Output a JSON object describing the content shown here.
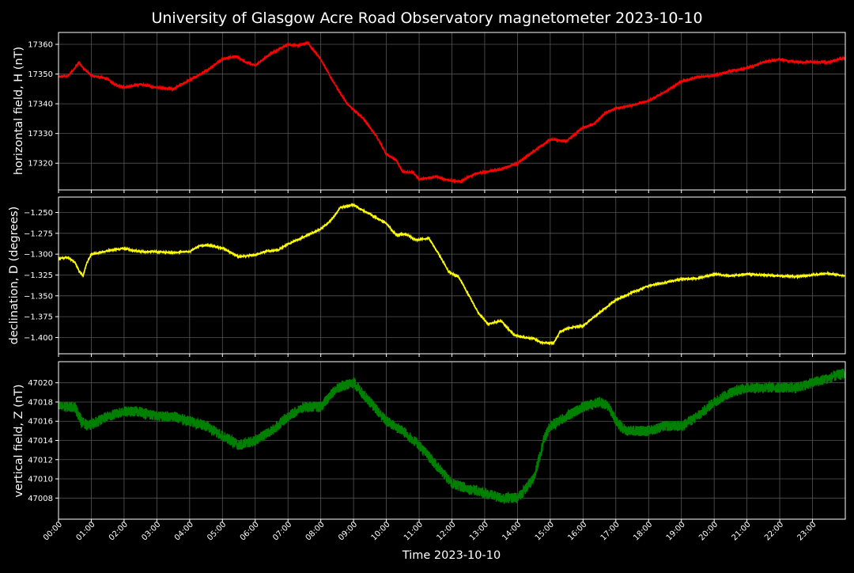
{
  "chart_data": [
    {
      "type": "line",
      "title": "University of Glasgow Acre Road Observatory magnetometer 2023-10-10",
      "ylabel": "horizontal field, H (nT)",
      "ylim": [
        17311,
        17364
      ],
      "yticks": [
        17320,
        17330,
        17340,
        17350,
        17360
      ],
      "yticklabels": [
        "17320",
        "17330",
        "17340",
        "17350",
        "17360"
      ],
      "grid": true,
      "series": [
        {
          "color": "#ff0000",
          "noise": 0.35,
          "points": [
            [
              0,
              17349
            ],
            [
              0.3,
              17349.5
            ],
            [
              0.5,
              17352
            ],
            [
              0.62,
              17354
            ],
            [
              0.75,
              17352
            ],
            [
              1,
              17349.5
            ],
            [
              1.5,
              17348.5
            ],
            [
              1.7,
              17346.5
            ],
            [
              2,
              17345.5
            ],
            [
              2.5,
              17346.5
            ],
            [
              3,
              17345.5
            ],
            [
              3.5,
              17345
            ],
            [
              4,
              17348
            ],
            [
              4.5,
              17351
            ],
            [
              5,
              17355
            ],
            [
              5.4,
              17356
            ],
            [
              5.7,
              17354
            ],
            [
              6,
              17353
            ],
            [
              6.5,
              17357
            ],
            [
              7,
              17360
            ],
            [
              7.3,
              17359.5
            ],
            [
              7.6,
              17360.5
            ],
            [
              8,
              17355
            ],
            [
              8.4,
              17347
            ],
            [
              8.8,
              17340
            ],
            [
              9.3,
              17335
            ],
            [
              9.7,
              17329
            ],
            [
              10,
              17323
            ],
            [
              10.3,
              17321
            ],
            [
              10.5,
              17317
            ],
            [
              10.8,
              17317
            ],
            [
              11,
              17314.5
            ],
            [
              11.5,
              17315.5
            ],
            [
              12,
              17314
            ],
            [
              12.3,
              17314
            ],
            [
              12.7,
              17316.5
            ],
            [
              13,
              17317
            ],
            [
              13.5,
              17318
            ],
            [
              14,
              17320
            ],
            [
              14.5,
              17324
            ],
            [
              15,
              17328
            ],
            [
              15.5,
              17327.5
            ],
            [
              16,
              17332
            ],
            [
              16.3,
              17333
            ],
            [
              16.7,
              17337
            ],
            [
              17,
              17338.5
            ],
            [
              17.5,
              17339.5
            ],
            [
              18,
              17341
            ],
            [
              18.5,
              17344
            ],
            [
              19,
              17347.5
            ],
            [
              19.5,
              17349
            ],
            [
              20,
              17349.5
            ],
            [
              20.5,
              17351
            ],
            [
              21,
              17352
            ],
            [
              21.5,
              17354
            ],
            [
              22,
              17355
            ],
            [
              22.5,
              17354
            ],
            [
              23,
              17354
            ],
            [
              23.5,
              17354
            ],
            [
              23.98,
              17355.5
            ]
          ]
        }
      ]
    },
    {
      "type": "line",
      "ylabel": "declination, D (degrees)",
      "ylim": [
        -1.4195,
        -1.2315
      ],
      "yticks": [
        -1.4,
        -1.375,
        -1.35,
        -1.325,
        -1.3,
        -1.275,
        -1.25
      ],
      "yticklabels": [
        "−1.400",
        "−1.375",
        "−1.350",
        "−1.325",
        "−1.300",
        "−1.275",
        "−1.250"
      ],
      "grid": true,
      "series": [
        {
          "color": "#ffff00",
          "noise": 0.0009,
          "points": [
            [
              0,
              -1.305
            ],
            [
              0.3,
              -1.304
            ],
            [
              0.5,
              -1.31
            ],
            [
              0.65,
              -1.322
            ],
            [
              0.75,
              -1.326
            ],
            [
              0.85,
              -1.312
            ],
            [
              1,
              -1.3
            ],
            [
              1.5,
              -1.296
            ],
            [
              2,
              -1.293
            ],
            [
              2.5,
              -1.297
            ],
            [
              3,
              -1.297
            ],
            [
              3.5,
              -1.298
            ],
            [
              4,
              -1.297
            ],
            [
              4.3,
              -1.29
            ],
            [
              4.6,
              -1.289
            ],
            [
              5,
              -1.293
            ],
            [
              5.5,
              -1.303
            ],
            [
              6,
              -1.301
            ],
            [
              6.3,
              -1.297
            ],
            [
              6.7,
              -1.295
            ],
            [
              7,
              -1.288
            ],
            [
              7.5,
              -1.279
            ],
            [
              8,
              -1.27
            ],
            [
              8.3,
              -1.26
            ],
            [
              8.6,
              -1.244
            ],
            [
              9,
              -1.241
            ],
            [
              9.5,
              -1.252
            ],
            [
              10,
              -1.263
            ],
            [
              10.3,
              -1.277
            ],
            [
              10.6,
              -1.276
            ],
            [
              10.9,
              -1.283
            ],
            [
              11.3,
              -1.281
            ],
            [
              11.6,
              -1.3
            ],
            [
              11.9,
              -1.321
            ],
            [
              12.2,
              -1.327
            ],
            [
              12.5,
              -1.348
            ],
            [
              12.8,
              -1.37
            ],
            [
              13.1,
              -1.384
            ],
            [
              13.5,
              -1.38
            ],
            [
              13.9,
              -1.397
            ],
            [
              14.2,
              -1.4
            ],
            [
              14.5,
              -1.401
            ],
            [
              14.7,
              -1.406
            ],
            [
              15.1,
              -1.407
            ],
            [
              15.3,
              -1.393
            ],
            [
              15.6,
              -1.388
            ],
            [
              16,
              -1.386
            ],
            [
              16.5,
              -1.37
            ],
            [
              17,
              -1.355
            ],
            [
              17.5,
              -1.346
            ],
            [
              18,
              -1.338
            ],
            [
              18.5,
              -1.334
            ],
            [
              19,
              -1.33
            ],
            [
              19.5,
              -1.329
            ],
            [
              20,
              -1.324
            ],
            [
              20.5,
              -1.326
            ],
            [
              21,
              -1.324
            ],
            [
              21.5,
              -1.325
            ],
            [
              22,
              -1.326
            ],
            [
              22.5,
              -1.327
            ],
            [
              23,
              -1.325
            ],
            [
              23.5,
              -1.323
            ],
            [
              23.98,
              -1.326
            ]
          ]
        }
      ]
    },
    {
      "type": "line",
      "xlabel": "Time 2023-10-10",
      "ylabel": "vertical field, Z (nT)",
      "ylim": [
        47005.8,
        47022.2
      ],
      "yticks": [
        47008,
        47010,
        47012,
        47014,
        47016,
        47018,
        47020
      ],
      "yticklabels": [
        "47008",
        "47010",
        "47012",
        "47014",
        "47016",
        "47018",
        "47020"
      ],
      "xlim": [
        0,
        24
      ],
      "xticks": [
        0,
        1,
        2,
        3,
        4,
        5,
        6,
        7,
        8,
        9,
        10,
        11,
        12,
        13,
        14,
        15,
        16,
        17,
        18,
        19,
        20,
        21,
        22,
        23
      ],
      "xticklabels": [
        "00:00",
        "01:00",
        "02:00",
        "03:00",
        "04:00",
        "05:00",
        "06:00",
        "07:00",
        "08:00",
        "09:00",
        "10:00",
        "11:00",
        "12:00",
        "13:00",
        "14:00",
        "15:00",
        "16:00",
        "17:00",
        "18:00",
        "19:00",
        "20:00",
        "21:00",
        "22:00",
        "23:00"
      ],
      "grid": true,
      "series": [
        {
          "color": "#008000",
          "noise": 0.55,
          "points": [
            [
              0,
              47017.5
            ],
            [
              0.5,
              47017.5
            ],
            [
              0.7,
              47016
            ],
            [
              0.9,
              47015.5
            ],
            [
              1.5,
              47016.5
            ],
            [
              2,
              47017
            ],
            [
              2.5,
              47017
            ],
            [
              3,
              47016.5
            ],
            [
              3.5,
              47016.5
            ],
            [
              4,
              47016
            ],
            [
              4.5,
              47015.5
            ],
            [
              5,
              47014.5
            ],
            [
              5.5,
              47013.5
            ],
            [
              6,
              47014
            ],
            [
              6.5,
              47015
            ],
            [
              7,
              47016.5
            ],
            [
              7.5,
              47017.5
            ],
            [
              8,
              47017.5
            ],
            [
              8.5,
              47019.5
            ],
            [
              9,
              47020
            ],
            [
              9.5,
              47018
            ],
            [
              10,
              47016
            ],
            [
              10.5,
              47015
            ],
            [
              11,
              47013.5
            ],
            [
              11.5,
              47011.5
            ],
            [
              12,
              47009.5
            ],
            [
              12.5,
              47009
            ],
            [
              13,
              47008.5
            ],
            [
              13.5,
              47008
            ],
            [
              14,
              47008
            ],
            [
              14.5,
              47010
            ],
            [
              14.8,
              47014
            ],
            [
              15,
              47015.5
            ],
            [
              15.5,
              47016.5
            ],
            [
              16,
              47017.5
            ],
            [
              16.5,
              47018
            ],
            [
              16.8,
              47017.5
            ],
            [
              17,
              47016
            ],
            [
              17.3,
              47015
            ],
            [
              18,
              47015
            ],
            [
              18.5,
              47015.5
            ],
            [
              19,
              47015.5
            ],
            [
              19.5,
              47016.5
            ],
            [
              20,
              47018
            ],
            [
              20.5,
              47019
            ],
            [
              21,
              47019.5
            ],
            [
              21.5,
              47019.5
            ],
            [
              22,
              47019.5
            ],
            [
              22.5,
              47019.5
            ],
            [
              23,
              47020
            ],
            [
              23.5,
              47020.5
            ],
            [
              23.98,
              47021
            ]
          ]
        }
      ]
    }
  ]
}
